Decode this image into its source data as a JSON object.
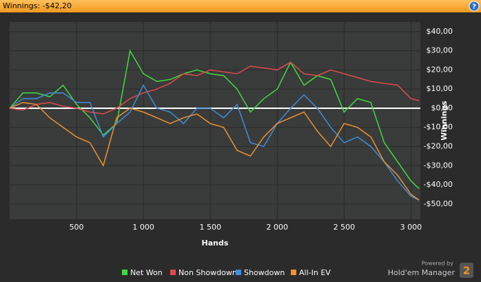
{
  "header": {
    "title": "Winnings: -$42,20",
    "help": "?"
  },
  "branding": {
    "powered": "Powered by",
    "product": "Hold'em Manager",
    "version": "2"
  },
  "chart_data": {
    "type": "line",
    "x_label": "Hands",
    "y_label": "Winnings",
    "x": [
      0,
      100,
      200,
      300,
      400,
      500,
      600,
      700,
      800,
      900,
      1000,
      1100,
      1200,
      1300,
      1400,
      1500,
      1600,
      1700,
      1800,
      1900,
      2000,
      2100,
      2200,
      2300,
      2400,
      2500,
      2600,
      2700,
      2800,
      2900,
      3000,
      3060
    ],
    "series": [
      {
        "name": "Net Won",
        "color": "#3fdc3f",
        "values": [
          0,
          8,
          8,
          6,
          12,
          2,
          -5,
          -14,
          -8,
          30,
          18,
          14,
          15,
          18,
          20,
          18,
          17,
          10,
          -2,
          5,
          10,
          24,
          12,
          17,
          15,
          -2,
          5,
          3,
          -18,
          -28,
          -38,
          -42
        ]
      },
      {
        "name": "Non Showdown",
        "color": "#e24a4a",
        "values": [
          0,
          -1,
          2,
          3,
          1,
          0,
          -2,
          -3,
          0,
          5,
          8,
          10,
          13,
          18,
          17,
          20,
          19,
          18,
          22,
          21,
          20,
          24,
          18,
          17,
          20,
          18,
          16,
          14,
          13,
          12,
          5,
          4
        ]
      },
      {
        "name": "Showdown",
        "color": "#3d8fdc",
        "values": [
          0,
          5,
          5,
          8,
          8,
          3,
          3,
          -15,
          -8,
          -2,
          12,
          0,
          -2,
          -8,
          0,
          0,
          -5,
          2,
          -18,
          -20,
          -8,
          0,
          7,
          0,
          -10,
          -18,
          -15,
          -20,
          -28,
          -38,
          -46,
          -48
        ]
      },
      {
        "name": "All-In EV",
        "color": "#f0922e",
        "values": [
          0,
          3,
          2,
          -5,
          -10,
          -15,
          -18,
          -30,
          -5,
          0,
          -2,
          -5,
          -8,
          -5,
          -3,
          -8,
          -10,
          -22,
          -25,
          -15,
          -8,
          -5,
          -2,
          -12,
          -20,
          -8,
          -10,
          -15,
          -28,
          -35,
          -45,
          -48
        ]
      }
    ],
    "xlim": [
      0,
      3070
    ],
    "ylim": [
      -58,
      45
    ],
    "xticks": [
      500,
      {
        "value": 1000,
        "label": "1 000"
      },
      {
        "value": 1500,
        "label": "1 500"
      },
      {
        "value": 2000,
        "label": "2 000"
      },
      {
        "value": 2500,
        "label": "2 500"
      },
      {
        "value": 3000,
        "label": "3 000"
      }
    ],
    "yticks": [
      {
        "value": 40,
        "label": "$40,00"
      },
      {
        "value": 30,
        "label": "$30,00"
      },
      {
        "value": 20,
        "label": "$20,00"
      },
      {
        "value": 10,
        "label": "$10,00"
      },
      {
        "value": 0,
        "label": "$0,00"
      },
      {
        "value": -10,
        "label": "-$10,00"
      },
      {
        "value": -20,
        "label": "-$20,00"
      },
      {
        "value": -30,
        "label": "-$30,00"
      },
      {
        "value": -40,
        "label": "-$40,00"
      },
      {
        "value": -50,
        "label": "-$50,00"
      }
    ],
    "grid": true,
    "legend": "bottom"
  }
}
